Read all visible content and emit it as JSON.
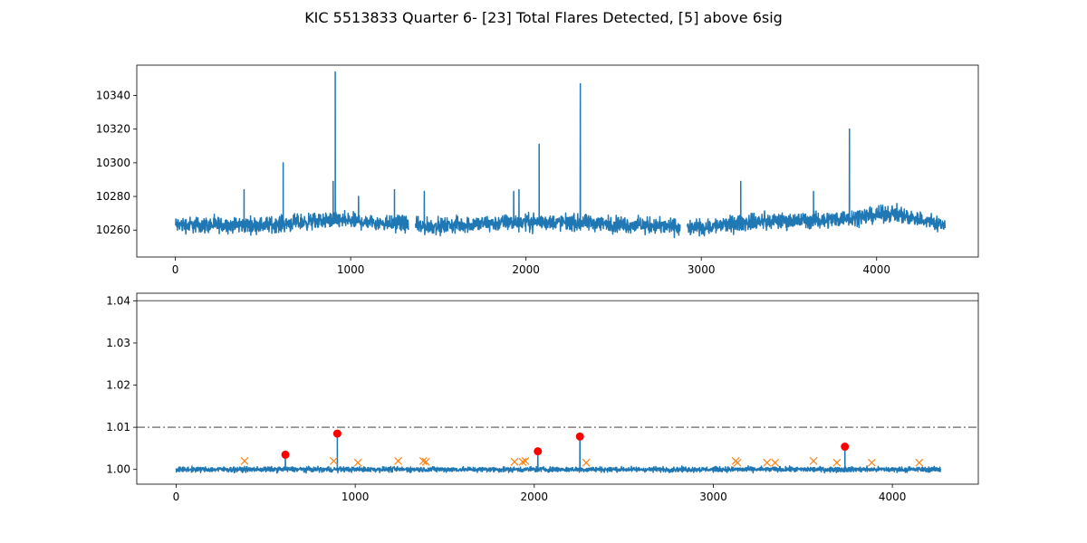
{
  "figure": {
    "title": "KIC 5513833 Quarter 6- [23] Total Flares Detected, [5] above 6sig"
  },
  "chart_data": [
    {
      "type": "line",
      "xlim": [
        -220,
        4580
      ],
      "ylim": [
        10244,
        10358
      ],
      "x_ticks": [
        0,
        1000,
        2000,
        3000,
        4000
      ],
      "x_tick_labels": [
        "0",
        "1000",
        "2000",
        "3000",
        "4000"
      ],
      "y_ticks": [
        10260,
        10280,
        10300,
        10320,
        10340
      ],
      "y_tick_labels": [
        "10260",
        "10280",
        "10300",
        "10320",
        "10340"
      ],
      "grid": false,
      "series": [
        {
          "color": "#1f77b4",
          "segments": [
            [
              0,
              1330
            ],
            [
              1370,
              2880
            ],
            [
              2920,
              4390
            ]
          ],
          "baseline": [
            [
              0,
              10263
            ],
            [
              500,
              10263
            ],
            [
              900,
              10266
            ],
            [
              1300,
              10264
            ],
            [
              1400,
              10262
            ],
            [
              2000,
              10265
            ],
            [
              2400,
              10264
            ],
            [
              2850,
              10262
            ],
            [
              2950,
              10261
            ],
            [
              3300,
              10265
            ],
            [
              3700,
              10266
            ],
            [
              4100,
              10270
            ],
            [
              4380,
              10263
            ]
          ],
          "noise_amplitude": 7,
          "spikes": [
            {
              "x": 392,
              "y": 10284
            },
            {
              "x": 615,
              "y": 10300
            },
            {
              "x": 900,
              "y": 10289
            },
            {
              "x": 912,
              "y": 10354
            },
            {
              "x": 1045,
              "y": 10280
            },
            {
              "x": 1250,
              "y": 10284
            },
            {
              "x": 1420,
              "y": 10283
            },
            {
              "x": 1930,
              "y": 10283
            },
            {
              "x": 1960,
              "y": 10284
            },
            {
              "x": 2075,
              "y": 10311
            },
            {
              "x": 2310,
              "y": 10347
            },
            {
              "x": 3225,
              "y": 10289
            },
            {
              "x": 3640,
              "y": 10283
            },
            {
              "x": 3845,
              "y": 10320
            }
          ]
        }
      ]
    },
    {
      "type": "line",
      "xlim": [
        -220,
        4480
      ],
      "ylim": [
        0.9965,
        1.0418
      ],
      "x_ticks": [
        0,
        1000,
        2000,
        3000,
        4000
      ],
      "x_tick_labels": [
        "0",
        "1000",
        "2000",
        "3000",
        "4000"
      ],
      "y_ticks": [
        1.0,
        1.01,
        1.02,
        1.03,
        1.04
      ],
      "y_tick_labels": [
        "1.00",
        "1.01",
        "1.02",
        "1.03",
        "1.04"
      ],
      "grid": false,
      "hlines": [
        {
          "y": 1.04,
          "style": "solid",
          "color": "#808080"
        },
        {
          "y": 1.01,
          "style": "dashdot",
          "color": "#808080"
        }
      ],
      "series": [
        {
          "color": "#1f77b4",
          "x_range": [
            0,
            4270
          ],
          "baseline": 1.0,
          "noise_amplitude": 0.0009,
          "spikes": [
            {
              "x": 610,
              "y": 1.0035
            },
            {
              "x": 900,
              "y": 1.0085
            },
            {
              "x": 2020,
              "y": 1.0043
            },
            {
              "x": 2255,
              "y": 1.0078
            },
            {
              "x": 3735,
              "y": 1.0054
            }
          ]
        }
      ],
      "flares_above_6sig": {
        "marker": "circle",
        "color": "#ff0000",
        "points": [
          [
            610,
            1.0035
          ],
          [
            900,
            1.0085
          ],
          [
            2020,
            1.0043
          ],
          [
            2255,
            1.0078
          ],
          [
            3735,
            1.0054
          ]
        ]
      },
      "flares_detected": {
        "marker": "x",
        "color": "#ff7f0e",
        "points": [
          [
            382,
            1.002
          ],
          [
            880,
            1.002
          ],
          [
            1015,
            1.0016
          ],
          [
            1240,
            1.002
          ],
          [
            1380,
            1.002
          ],
          [
            1395,
            1.0018
          ],
          [
            1890,
            1.0018
          ],
          [
            1935,
            1.0018
          ],
          [
            1950,
            1.002
          ],
          [
            2290,
            1.0016
          ],
          [
            3125,
            1.002
          ],
          [
            3135,
            1.0016
          ],
          [
            3300,
            1.0016
          ],
          [
            3345,
            1.0016
          ],
          [
            3560,
            1.002
          ],
          [
            3690,
            1.0016
          ],
          [
            3885,
            1.0016
          ],
          [
            4150,
            1.0016
          ]
        ]
      }
    }
  ]
}
